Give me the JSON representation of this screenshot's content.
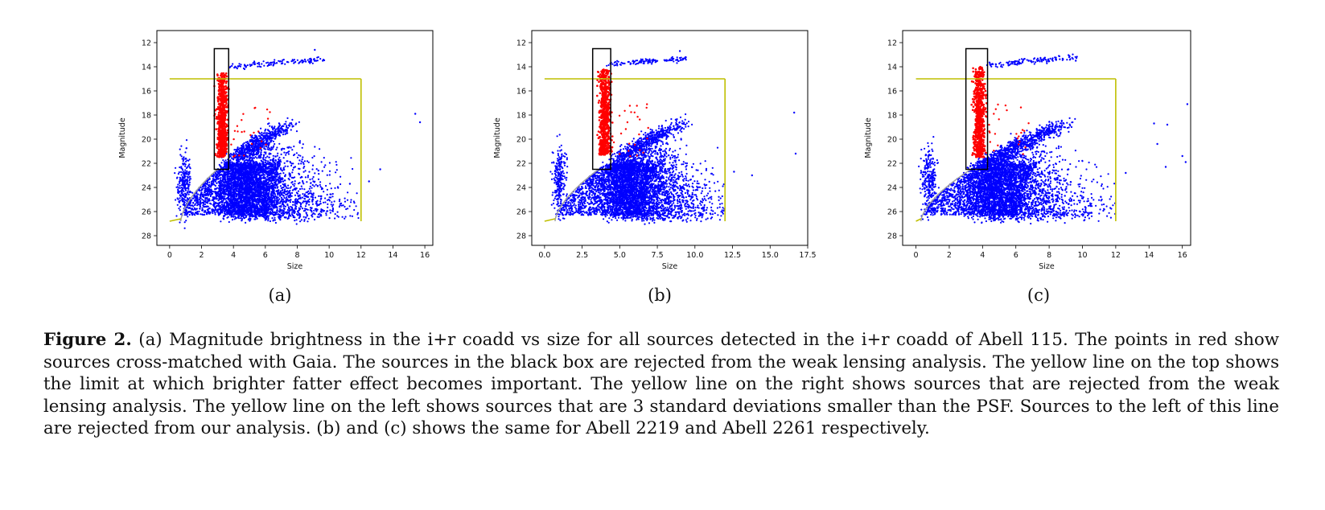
{
  "figure": {
    "panel_labels": [
      "(a)",
      "(b)",
      "(c)"
    ],
    "caption_label": "Figure 2.",
    "caption_text": "(a) Magnitude brightness in the i+r coadd vs size for all sources detected in the i+r coadd of Abell 115. The points in red show sources cross-matched with Gaia. The sources in the black box are rejected from the weak lensing analysis. The yellow line on the top shows the limit at which brighter fatter effect becomes important. The yellow line on the right shows sources that are rejected from the weak lensing analysis. The yellow line on the left shows sources that are 3 standard deviations smaller than the PSF. Sources to the left of this line are rejected from our analysis. (b) and (c) shows the same for Abell 2219 and Abell 2261 respectively."
  },
  "colors": {
    "blue": "#0000ff",
    "red": "#ff0000",
    "yellow": "#bfbf00",
    "gray": "#a0a0a0",
    "black": "#000000"
  },
  "chart_data": [
    {
      "type": "scatter",
      "xlabel": "Size",
      "ylabel": "Magnitude",
      "xlim": [
        -0.8,
        16.5
      ],
      "ylim": [
        28.8,
        11.0
      ],
      "y_inverted": true,
      "xticks": [
        0,
        2,
        4,
        6,
        8,
        10,
        12,
        14,
        16
      ],
      "xtick_labels": [
        "0",
        "2",
        "4",
        "6",
        "8",
        "10",
        "12",
        "14",
        "16"
      ],
      "yticks": [
        12,
        14,
        16,
        18,
        20,
        22,
        24,
        26,
        28
      ],
      "ytick_labels": [
        "12",
        "14",
        "16",
        "18",
        "20",
        "22",
        "24",
        "26",
        "28"
      ],
      "rejection_box": {
        "x": [
          2.8,
          3.7
        ],
        "y": [
          12.5,
          22.5
        ]
      },
      "bright_limit": {
        "x": [
          0.0,
          12.0
        ],
        "y": 15.0
      },
      "size_limit": {
        "x": 12.0,
        "y": [
          15.0,
          26.8
        ]
      },
      "psf_curve": {
        "x0": 0.7,
        "xs": 3.0,
        "y_bottom": 26.8,
        "y_top": 22.5
      },
      "stellar_locus": {
        "x": 3.3,
        "sigma_x": 0.15,
        "y": [
          14.5,
          21.5
        ],
        "branch_x": [
          3.7,
          9.5
        ],
        "branch_y": [
          14.0,
          13.4
        ]
      },
      "galaxy_cloud": {
        "x_center": 4.5,
        "y_center": 23.2,
        "x_max": 12.0,
        "y_min": 18.5,
        "y_max": 26.5
      },
      "small_source_clump": {
        "x_center": 0.9,
        "y_center": 24.0
      },
      "outliers": [
        {
          "x": 15.4,
          "y": 17.9
        },
        {
          "x": 15.7,
          "y": 18.6
        },
        {
          "x": 13.2,
          "y": 22.5
        },
        {
          "x": 12.5,
          "y": 23.5
        },
        {
          "x": 11.3,
          "y": 23.7
        },
        {
          "x": 9.1,
          "y": 12.6
        },
        {
          "x": 9.6,
          "y": 13.5
        }
      ]
    },
    {
      "type": "scatter",
      "xlabel": "Size",
      "ylabel": "Magnitude",
      "xlim": [
        -0.85,
        17.5
      ],
      "ylim": [
        28.8,
        11.0
      ],
      "y_inverted": true,
      "xticks": [
        0,
        2.5,
        5,
        7.5,
        10,
        12.5,
        15,
        17.5
      ],
      "xtick_labels": [
        "0.0",
        "2.5",
        "5.0",
        "7.5",
        "10.0",
        "12.5",
        "15.0",
        "17.5"
      ],
      "yticks": [
        12,
        14,
        16,
        18,
        20,
        22,
        24,
        26,
        28
      ],
      "ytick_labels": [
        "12",
        "14",
        "16",
        "18",
        "20",
        "22",
        "24",
        "26",
        "28"
      ],
      "rejection_box": {
        "x": [
          3.2,
          4.4
        ],
        "y": [
          12.5,
          22.5
        ]
      },
      "bright_limit": {
        "x": [
          0.0,
          12.0
        ],
        "y": 15.0
      },
      "size_limit": {
        "x": 12.0,
        "y": [
          15.0,
          26.8
        ]
      },
      "psf_curve": {
        "x0": 0.7,
        "xs": 3.6,
        "y_bottom": 26.8,
        "y_top": 22.5
      },
      "stellar_locus": {
        "x": 4.0,
        "sigma_x": 0.18,
        "y": [
          14.2,
          21.3
        ],
        "branch_x": [
          4.3,
          9.5
        ],
        "branch_y": [
          13.8,
          13.3
        ]
      },
      "galaxy_cloud": {
        "x_center": 5.5,
        "y_center": 23.0,
        "x_max": 12.0,
        "y_min": 18.5,
        "y_max": 26.5
      },
      "small_source_clump": {
        "x_center": 1.0,
        "y_center": 23.5
      },
      "outliers": [
        {
          "x": 16.6,
          "y": 17.8
        },
        {
          "x": 16.7,
          "y": 21.2
        },
        {
          "x": 13.8,
          "y": 23.0
        },
        {
          "x": 12.6,
          "y": 22.7
        },
        {
          "x": 9.0,
          "y": 12.7
        },
        {
          "x": 9.2,
          "y": 13.4
        }
      ]
    },
    {
      "type": "scatter",
      "xlabel": "Size",
      "ylabel": "Magnitude",
      "xlim": [
        -0.8,
        16.5
      ],
      "ylim": [
        28.8,
        11.0
      ],
      "y_inverted": true,
      "xticks": [
        0,
        2,
        4,
        6,
        8,
        10,
        12,
        14,
        16
      ],
      "xtick_labels": [
        "0",
        "2",
        "4",
        "6",
        "8",
        "10",
        "12",
        "14",
        "16"
      ],
      "yticks": [
        12,
        14,
        16,
        18,
        20,
        22,
        24,
        26,
        28
      ],
      "ytick_labels": [
        "12",
        "14",
        "16",
        "18",
        "20",
        "22",
        "24",
        "26",
        "28"
      ],
      "rejection_box": {
        "x": [
          3.0,
          4.3
        ],
        "y": [
          12.5,
          22.5
        ]
      },
      "bright_limit": {
        "x": [
          0.0,
          12.0
        ],
        "y": 15.0
      },
      "size_limit": {
        "x": 12.0,
        "y": [
          15.0,
          26.8
        ]
      },
      "psf_curve": {
        "x0": 0.3,
        "xs": 3.3,
        "y_bottom": 26.8,
        "y_top": 22.5
      },
      "stellar_locus": {
        "x": 3.8,
        "sigma_x": 0.16,
        "y": [
          14.0,
          21.5
        ],
        "branch_x": [
          4.2,
          9.5
        ],
        "branch_y": [
          13.9,
          13.2
        ]
      },
      "galaxy_cloud": {
        "x_center": 4.6,
        "y_center": 23.0,
        "x_max": 12.0,
        "y_min": 18.5,
        "y_max": 26.5
      },
      "small_source_clump": {
        "x_center": 0.8,
        "y_center": 23.5
      },
      "outliers": [
        {
          "x": 16.3,
          "y": 17.1
        },
        {
          "x": 14.3,
          "y": 18.7
        },
        {
          "x": 15.1,
          "y": 18.8
        },
        {
          "x": 14.5,
          "y": 20.4
        },
        {
          "x": 16.0,
          "y": 21.4
        },
        {
          "x": 16.2,
          "y": 21.9
        },
        {
          "x": 15.0,
          "y": 22.3
        },
        {
          "x": 12.6,
          "y": 22.8
        },
        {
          "x": 9.6,
          "y": 13.5
        }
      ]
    }
  ]
}
